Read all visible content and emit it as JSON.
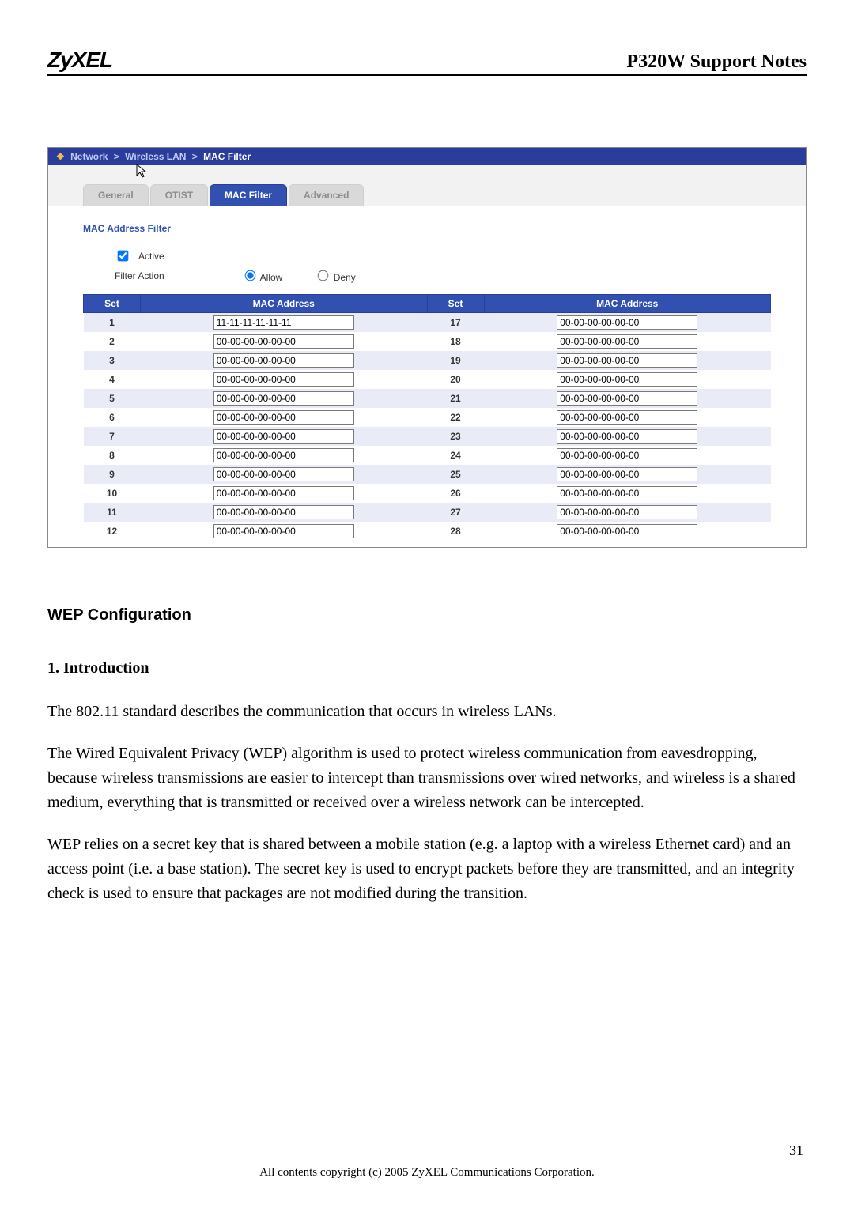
{
  "doc": {
    "logo": "ZyXEL",
    "header_title": "P320W Support Notes",
    "page_number": "31",
    "copyright": "All contents copyright (c) 2005 ZyXEL Communications Corporation."
  },
  "breadcrumb": {
    "items": [
      "Network",
      "Wireless LAN",
      "MAC Filter"
    ]
  },
  "tabs": {
    "items": [
      {
        "label": "General",
        "active": false
      },
      {
        "label": "OTIST",
        "active": false
      },
      {
        "label": "MAC Filter",
        "active": true
      },
      {
        "label": "Advanced",
        "active": false
      }
    ]
  },
  "section": {
    "title": "MAC Address Filter",
    "active_label": "Active",
    "active_checked": true,
    "filter_action_label": "Filter Action",
    "radio_allow_label": "Allow",
    "radio_deny_label": "Deny",
    "radio_value": "allow"
  },
  "table": {
    "headers": {
      "set": "Set",
      "mac": "MAC Address"
    },
    "left_start": 1,
    "right_start": 17,
    "row_count": 12,
    "first_value": "11-11-11-11-11-11",
    "default_value": "00-00-00-00-00-00",
    "odd_row_bg": "#e9ecf6",
    "even_row_bg": "#ffffff",
    "header_bg": "#3150b0",
    "header_color": "#ffffff"
  },
  "content": {
    "h2": "WEP Configuration",
    "h3": "1. Introduction",
    "p1": "The 802.11 standard describes the communication that occurs in wireless LANs.",
    "p2": "The Wired Equivalent Privacy (WEP) algorithm is used to protect wireless communication from eavesdropping, because wireless transmissions are easier to intercept than transmissions over wired networks, and wireless is a shared medium, everything that is transmitted or received over a wireless network can be intercepted.",
    "p3": "WEP relies on a secret key that is shared between a mobile station (e.g. a laptop with a wireless Ethernet card) and an access point (i.e. a base station). The secret key is used to encrypt packets before they are transmitted, and an integrity check is used to ensure that packages are not modified during the transition."
  },
  "colors": {
    "brand_blue": "#3150b0",
    "bc_blue": "#2a3c9c",
    "panel_bg": "#f2f2f2",
    "tab_inactive_bg": "#d9d9d9",
    "tab_inactive_fg": "#8c8c8c"
  }
}
